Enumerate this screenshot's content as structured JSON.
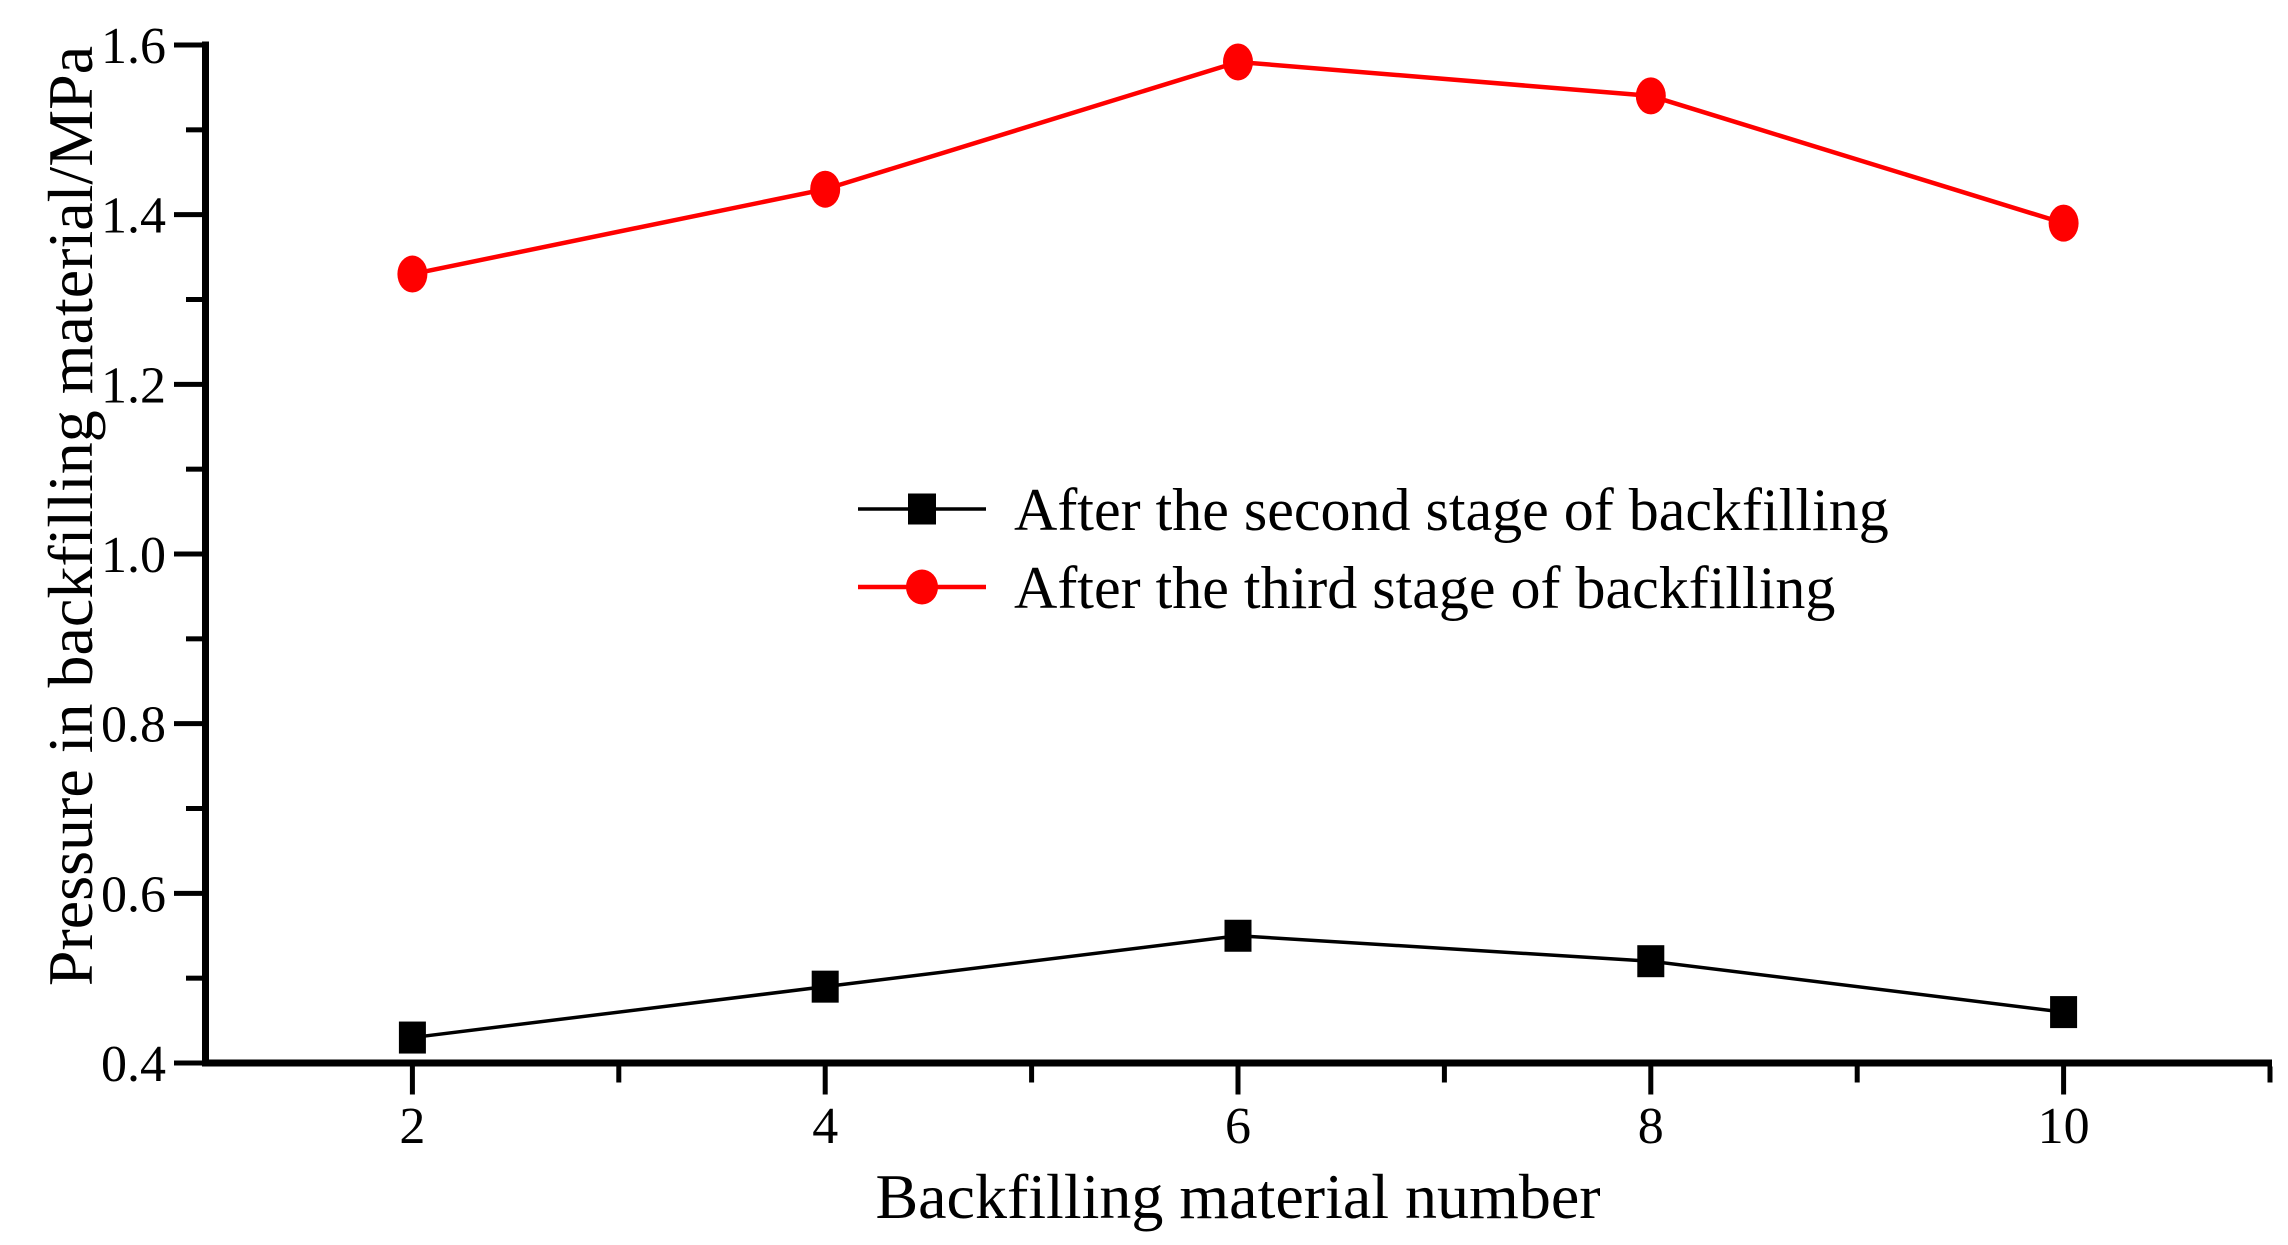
{
  "chart_data": {
    "type": "line",
    "title": "",
    "xlabel": "Backfilling material number",
    "ylabel": "Pressure in backfilling material/MPa",
    "x": [
      2,
      4,
      6,
      8,
      10
    ],
    "series": [
      {
        "name": "After the second stage of backfilling",
        "color": "#000000",
        "marker": "square",
        "values": [
          0.43,
          0.49,
          0.55,
          0.52,
          0.46
        ]
      },
      {
        "name": "After the third stage of backfilling",
        "color": "#ff0000",
        "marker": "circle",
        "values": [
          1.33,
          1.43,
          1.58,
          1.54,
          1.39
        ]
      }
    ],
    "xlim": [
      1,
      11
    ],
    "ylim": [
      0.4,
      1.6
    ],
    "x_major_ticks": [
      2,
      4,
      6,
      8,
      10
    ],
    "x_minor_ticks": [
      3,
      5,
      7,
      9,
      11
    ],
    "x_tick_labels": [
      "2",
      "4",
      "6",
      "8",
      "10"
    ],
    "y_major_ticks": [
      0.4,
      0.6,
      0.8,
      1.0,
      1.2,
      1.4,
      1.6
    ],
    "y_minor_ticks": [
      0.5,
      0.7,
      0.9,
      1.1,
      1.3,
      1.5
    ],
    "y_tick_labels": [
      "0.4",
      "0.6",
      "0.8",
      "1.0",
      "1.2",
      "1.4",
      "1.6"
    ],
    "grid": false,
    "legend_position": "center",
    "background_color": "#ffffff",
    "axis_color": "#000000"
  }
}
